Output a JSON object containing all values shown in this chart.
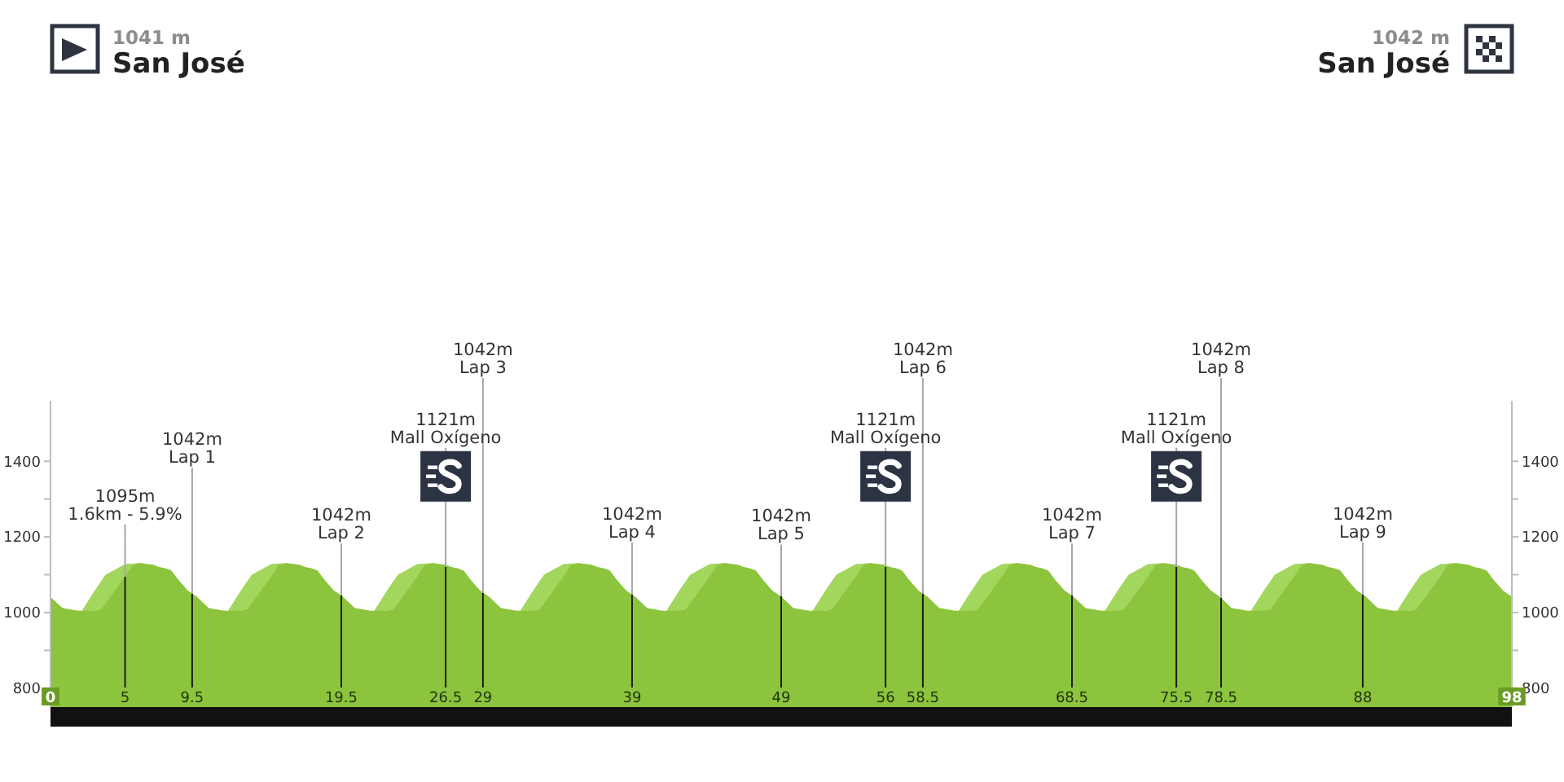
{
  "chart_data": {
    "type": "area",
    "xlim": [
      0,
      98
    ],
    "xticks": [
      0,
      5,
      9.5,
      19.5,
      26.5,
      29,
      39,
      49,
      56,
      58.5,
      68.5,
      75.5,
      78.5,
      88,
      98
    ],
    "ylim": [
      750,
      1560
    ],
    "yticks": [
      800,
      {
        "value": 900,
        "label": null
      },
      1000,
      {
        "value": 1100,
        "label": null
      },
      1200,
      {
        "value": 1300,
        "label": null
      },
      1400
    ],
    "y2lim": [
      750,
      1560
    ],
    "y2ticks": [
      800,
      {
        "value": 900,
        "label": null
      },
      1000,
      {
        "value": 1100,
        "label": null
      },
      1200,
      {
        "value": 1300,
        "label": null
      },
      1400
    ],
    "series": [
      {
        "color": "#a3d65c",
        "x": [
          0,
          0.8,
          1.8,
          2.1,
          3,
          3.7,
          5,
          6,
          6.9,
          7.3,
          7.7,
          8.1,
          8.6,
          9.2,
          9.8,
          10.6,
          11.6,
          11.9,
          12.8,
          13.5,
          14.8,
          15.8,
          16.7,
          17.1,
          17.5,
          17.9,
          18.4,
          19,
          19.6,
          20.4,
          21.4,
          21.7,
          22.6,
          23.3,
          24.6,
          25.6,
          26.5,
          26.9,
          27.3,
          27.7,
          28.2,
          28.8,
          29.4,
          30.2,
          31.2,
          31.5,
          32.4,
          33.1,
          34.4,
          35.4,
          36.3,
          36.7,
          37.1,
          37.5,
          38,
          38.6,
          39.2,
          40,
          41,
          41.3,
          42.2,
          42.9,
          44.2,
          45.2,
          46.1,
          46.5,
          46.9,
          47.3,
          47.8,
          48.4,
          49,
          49.8,
          50.8,
          51.1,
          52,
          52.7,
          54,
          55,
          55.9,
          56.3,
          56.7,
          57.1,
          57.6,
          58.2,
          58.8,
          59.6,
          60.6,
          60.9,
          61.8,
          62.5,
          63.8,
          64.8,
          65.7,
          66.1,
          66.5,
          66.9,
          67.4,
          68,
          68.6,
          69.4,
          70.4,
          70.7,
          71.6,
          72.3,
          73.6,
          74.6,
          75.5,
          75.9,
          76.3,
          76.7,
          77.2,
          77.8,
          78.4,
          79.2,
          80.2,
          80.5,
          81.4,
          82.1,
          83.4,
          84.4,
          85.3,
          85.7,
          86.1,
          86.5,
          87,
          87.6,
          88.2,
          89,
          90,
          90.3,
          91.2,
          91.9,
          93.2,
          94.2,
          95.1,
          95.5,
          95.9,
          96.3,
          96.8,
          97.4
        ],
        "values": [
          1041,
          1012,
          1005,
          1004,
          1060,
          1100,
          1128,
          1131,
          1126,
          1120,
          1117,
          1111,
          1085,
          1058,
          1042,
          1012,
          1005,
          1004,
          1060,
          1100,
          1128,
          1131,
          1126,
          1120,
          1117,
          1111,
          1085,
          1058,
          1042,
          1012,
          1005,
          1004,
          1060,
          1100,
          1128,
          1131,
          1126,
          1120,
          1117,
          1111,
          1085,
          1058,
          1042,
          1012,
          1005,
          1004,
          1060,
          1100,
          1128,
          1131,
          1126,
          1120,
          1117,
          1111,
          1085,
          1058,
          1042,
          1012,
          1005,
          1004,
          1060,
          1100,
          1128,
          1131,
          1126,
          1120,
          1117,
          1111,
          1085,
          1058,
          1042,
          1012,
          1005,
          1004,
          1060,
          1100,
          1128,
          1131,
          1126,
          1120,
          1117,
          1111,
          1085,
          1058,
          1042,
          1012,
          1005,
          1004,
          1060,
          1100,
          1128,
          1131,
          1126,
          1120,
          1117,
          1111,
          1085,
          1058,
          1042,
          1012,
          1005,
          1004,
          1060,
          1100,
          1128,
          1131,
          1126,
          1120,
          1117,
          1111,
          1085,
          1058,
          1042,
          1012,
          1005,
          1004,
          1060,
          1100,
          1128,
          1131,
          1126,
          1120,
          1117,
          1111,
          1085,
          1058,
          1042,
          1012,
          1005,
          1004,
          1060,
          1100,
          1128,
          1131,
          1126,
          1120,
          1117,
          1111,
          1085,
          1058
        ]
      },
      {
        "color": "#8cc43d",
        "x": [
          0,
          0.8,
          1.8,
          3,
          3.4,
          5,
          5.5,
          6,
          6.9,
          7.3,
          7.7,
          8.1,
          8.6,
          9.2,
          9.8,
          10.6,
          11.6,
          12.8,
          13.2,
          14.8,
          15.3,
          15.8,
          16.7,
          17.1,
          17.5,
          17.9,
          18.4,
          19,
          19.6,
          20.4,
          21.4,
          22.6,
          23,
          24.6,
          25.1,
          25.6,
          26.5,
          26.9,
          27.3,
          27.7,
          28.2,
          28.8,
          29.4,
          30.2,
          31.2,
          32.4,
          32.8,
          34.4,
          34.9,
          35.4,
          36.3,
          36.7,
          37.1,
          37.5,
          38,
          38.6,
          39.2,
          40,
          41,
          42.2,
          42.6,
          44.2,
          44.7,
          45.2,
          46.1,
          46.5,
          46.9,
          47.3,
          47.8,
          48.4,
          49,
          49.8,
          50.8,
          52,
          52.4,
          54,
          54.5,
          55,
          55.9,
          56.3,
          56.7,
          57.1,
          57.6,
          58.2,
          58.8,
          59.6,
          60.6,
          61.8,
          62.2,
          63.8,
          64.3,
          64.8,
          65.7,
          66.1,
          66.5,
          66.9,
          67.4,
          68,
          68.6,
          69.4,
          70.4,
          71.6,
          72,
          73.6,
          74.1,
          74.6,
          75.5,
          75.9,
          76.3,
          76.7,
          77.2,
          77.8,
          78.4,
          79.2,
          80.2,
          81.4,
          81.8,
          83.4,
          83.9,
          84.4,
          85.3,
          85.7,
          86.1,
          86.5,
          87,
          87.6,
          88.2,
          89,
          90,
          91.2,
          91.6,
          93.2,
          93.7,
          94.2,
          95.1,
          95.5,
          95.9,
          96.3,
          96.8,
          97.4,
          98
        ],
        "values": [
          1041,
          1012,
          1005,
          1004,
          1008,
          1095,
          1125,
          1131,
          1126,
          1120,
          1117,
          1111,
          1085,
          1058,
          1042,
          1012,
          1005,
          1004,
          1008,
          1095,
          1125,
          1131,
          1126,
          1120,
          1117,
          1111,
          1085,
          1058,
          1042,
          1012,
          1005,
          1004,
          1008,
          1095,
          1125,
          1131,
          1126,
          1120,
          1117,
          1111,
          1085,
          1058,
          1042,
          1012,
          1005,
          1004,
          1008,
          1095,
          1125,
          1131,
          1126,
          1120,
          1117,
          1111,
          1085,
          1058,
          1042,
          1012,
          1005,
          1004,
          1008,
          1095,
          1125,
          1131,
          1126,
          1120,
          1117,
          1111,
          1085,
          1058,
          1042,
          1012,
          1005,
          1004,
          1008,
          1095,
          1125,
          1131,
          1126,
          1120,
          1117,
          1111,
          1085,
          1058,
          1042,
          1012,
          1005,
          1004,
          1008,
          1095,
          1125,
          1131,
          1126,
          1120,
          1117,
          1111,
          1085,
          1058,
          1042,
          1012,
          1005,
          1004,
          1008,
          1095,
          1125,
          1131,
          1126,
          1120,
          1117,
          1111,
          1085,
          1058,
          1042,
          1012,
          1005,
          1004,
          1008,
          1095,
          1125,
          1131,
          1126,
          1120,
          1117,
          1111,
          1085,
          1058,
          1042,
          1012,
          1005,
          1004,
          1008,
          1095,
          1125,
          1131,
          1126,
          1120,
          1117,
          1111,
          1085,
          1058,
          1042
        ]
      }
    ],
    "ref_lines": [
      {
        "axis": "x",
        "value": 5,
        "label": "1095m\n1.6km - 5.9%"
      },
      {
        "axis": "x",
        "value": 9.5,
        "label": "1042m\nLap 1"
      },
      {
        "axis": "x",
        "value": 19.5,
        "label": "1042m\nLap 2"
      },
      {
        "axis": "x",
        "value": 26.5
      },
      {
        "axis": "x",
        "value": 29,
        "label": "1042m\nLap 3"
      },
      {
        "axis": "x",
        "value": 39,
        "label": "1042m\nLap 4"
      },
      {
        "axis": "x",
        "value": 49,
        "label": "1042m\nLap 5"
      },
      {
        "axis": "x",
        "value": 56
      },
      {
        "axis": "x",
        "value": 58.5,
        "label": "1042m\nLap 6"
      },
      {
        "axis": "x",
        "value": 68.5,
        "label": "1042m\nLap 7"
      },
      {
        "axis": "x",
        "value": 75.5
      },
      {
        "axis": "x",
        "value": 78.5,
        "label": "1042m\nLap 8"
      },
      {
        "axis": "x",
        "value": 88,
        "label": "1042m\nLap 9"
      }
    ],
    "annotations": [
      "1041 m",
      "San José",
      "1042 m",
      "San José",
      {
        "text": "1121m\nMall Oxígeno",
        "x": 26.5,
        "y": 1121
      },
      {
        "text": "1121m\nMall Oxígeno",
        "x": 56,
        "y": 1121
      },
      {
        "text": "1121m\nMall Oxígeno",
        "x": 75.5,
        "y": 1121
      }
    ]
  }
}
